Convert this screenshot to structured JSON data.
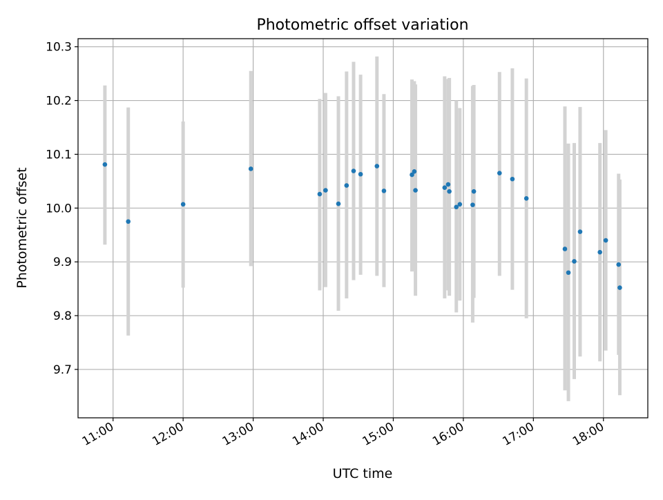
{
  "chart_data": {
    "type": "scatter",
    "title": "Photometric offset variation",
    "xlabel": "UTC time",
    "ylabel": "Photometric offset",
    "x_unit": "UTC time of day",
    "xlim": [
      "10:30",
      "18:38"
    ],
    "ylim": [
      9.61,
      10.315
    ],
    "x_ticks": [
      "11:00",
      "12:00",
      "13:00",
      "14:00",
      "15:00",
      "16:00",
      "17:00",
      "18:00"
    ],
    "y_ticks": [
      "9.7",
      "9.8",
      "9.9",
      "10.0",
      "10.1",
      "10.2",
      "10.3"
    ],
    "grid": true,
    "legend": "none",
    "colors": {
      "point": "#1f77b4",
      "errorbar": "#d3d3d3",
      "grid": "#b0b0b0"
    },
    "points": [
      {
        "x": "10:53",
        "y": 10.081,
        "ylow": 9.932,
        "yhigh": 10.228
      },
      {
        "x": "11:13",
        "y": 9.975,
        "ylow": 9.763,
        "yhigh": 10.187
      },
      {
        "x": "12:00",
        "y": 10.007,
        "ylow": 9.852,
        "yhigh": 10.161
      },
      {
        "x": "12:58",
        "y": 10.073,
        "ylow": 9.892,
        "yhigh": 10.255
      },
      {
        "x": "13:57",
        "y": 10.026,
        "ylow": 9.847,
        "yhigh": 10.203
      },
      {
        "x": "14:02",
        "y": 10.033,
        "ylow": 9.853,
        "yhigh": 10.214
      },
      {
        "x": "14:13",
        "y": 10.008,
        "ylow": 9.809,
        "yhigh": 10.208
      },
      {
        "x": "14:20",
        "y": 10.042,
        "ylow": 9.832,
        "yhigh": 10.254
      },
      {
        "x": "14:26",
        "y": 10.069,
        "ylow": 9.866,
        "yhigh": 10.272
      },
      {
        "x": "14:32",
        "y": 10.063,
        "ylow": 9.876,
        "yhigh": 10.248
      },
      {
        "x": "14:46",
        "y": 10.078,
        "ylow": 9.874,
        "yhigh": 10.282
      },
      {
        "x": "14:52",
        "y": 10.032,
        "ylow": 9.853,
        "yhigh": 10.212
      },
      {
        "x": "15:16",
        "y": 10.062,
        "ylow": 9.882,
        "yhigh": 10.239
      },
      {
        "x": "15:18",
        "y": 10.068,
        "ylow": 9.885,
        "yhigh": 10.236
      },
      {
        "x": "15:19",
        "y": 10.033,
        "ylow": 9.837,
        "yhigh": 10.23
      },
      {
        "x": "15:44",
        "y": 10.038,
        "ylow": 9.832,
        "yhigh": 10.245
      },
      {
        "x": "15:47",
        "y": 10.044,
        "ylow": 9.847,
        "yhigh": 10.24
      },
      {
        "x": "15:48",
        "y": 10.031,
        "ylow": 9.837,
        "yhigh": 10.242
      },
      {
        "x": "15:54",
        "y": 10.002,
        "ylow": 9.806,
        "yhigh": 10.2
      },
      {
        "x": "15:57",
        "y": 10.007,
        "ylow": 9.828,
        "yhigh": 10.186
      },
      {
        "x": "16:08",
        "y": 10.006,
        "ylow": 9.787,
        "yhigh": 10.227
      },
      {
        "x": "16:09",
        "y": 10.031,
        "ylow": 9.833,
        "yhigh": 10.229
      },
      {
        "x": "16:31",
        "y": 10.065,
        "ylow": 9.874,
        "yhigh": 10.253
      },
      {
        "x": "16:42",
        "y": 10.054,
        "ylow": 9.848,
        "yhigh": 10.26
      },
      {
        "x": "16:54",
        "y": 10.018,
        "ylow": 9.795,
        "yhigh": 10.241
      },
      {
        "x": "17:27",
        "y": 9.924,
        "ylow": 9.661,
        "yhigh": 10.189
      },
      {
        "x": "17:30",
        "y": 9.88,
        "ylow": 9.641,
        "yhigh": 10.12
      },
      {
        "x": "17:35",
        "y": 9.901,
        "ylow": 9.682,
        "yhigh": 10.121
      },
      {
        "x": "17:40",
        "y": 9.956,
        "ylow": 9.724,
        "yhigh": 10.188
      },
      {
        "x": "17:57",
        "y": 9.918,
        "ylow": 9.715,
        "yhigh": 10.121
      },
      {
        "x": "18:02",
        "y": 9.94,
        "ylow": 9.735,
        "yhigh": 10.145
      },
      {
        "x": "18:13",
        "y": 9.895,
        "ylow": 9.727,
        "yhigh": 10.064
      },
      {
        "x": "18:14",
        "y": 9.852,
        "ylow": 9.652,
        "yhigh": 10.053
      }
    ]
  }
}
